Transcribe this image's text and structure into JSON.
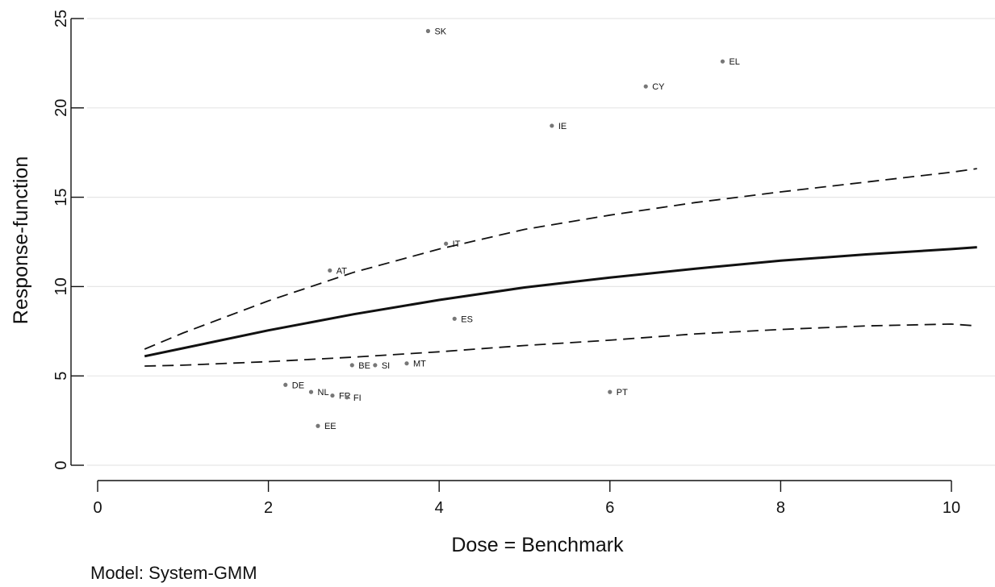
{
  "chart_data": {
    "type": "scatter",
    "title": "",
    "xlabel": "Dose = Benchmark",
    "ylabel": "Response-function",
    "xlim": [
      0,
      10.5
    ],
    "ylim": [
      0,
      25
    ],
    "x_ticks": [
      0,
      2,
      4,
      6,
      8,
      10
    ],
    "y_ticks": [
      0,
      5,
      10,
      15,
      20,
      25
    ],
    "grid": "horizontal",
    "note": "Model: System-GMM",
    "points": [
      {
        "label": "SK",
        "x": 3.87,
        "y": 24.3
      },
      {
        "label": "EL",
        "x": 7.32,
        "y": 22.6
      },
      {
        "label": "CY",
        "x": 6.42,
        "y": 21.2
      },
      {
        "label": "IE",
        "x": 5.32,
        "y": 19.0
      },
      {
        "label": "IT",
        "x": 4.08,
        "y": 12.4
      },
      {
        "label": "AT",
        "x": 2.72,
        "y": 10.9
      },
      {
        "label": "ES",
        "x": 4.18,
        "y": 8.2
      },
      {
        "label": "BE",
        "x": 2.98,
        "y": 5.6
      },
      {
        "label": "SI",
        "x": 3.25,
        "y": 5.6
      },
      {
        "label": "MT",
        "x": 3.62,
        "y": 5.7
      },
      {
        "label": "DE",
        "x": 2.2,
        "y": 4.5
      },
      {
        "label": "NL",
        "x": 2.5,
        "y": 4.1
      },
      {
        "label": "FR",
        "x": 2.75,
        "y": 3.9
      },
      {
        "label": "FI",
        "x": 2.92,
        "y": 3.8
      },
      {
        "label": "PT",
        "x": 6.0,
        "y": 4.1
      },
      {
        "label": "EE",
        "x": 2.58,
        "y": 2.2
      }
    ],
    "series": [
      {
        "style": "solid",
        "x": [
          0.55,
          1,
          2,
          3,
          4,
          5,
          6,
          7,
          8,
          9,
          10,
          10.3
        ],
        "y": [
          6.1,
          6.55,
          7.55,
          8.45,
          9.25,
          9.95,
          10.5,
          11.0,
          11.45,
          11.8,
          12.1,
          12.2
        ]
      },
      {
        "style": "dashed",
        "x": [
          0.55,
          1,
          2,
          3,
          4,
          5,
          6,
          7,
          8,
          9,
          10,
          10.3
        ],
        "y": [
          6.5,
          7.4,
          9.2,
          10.8,
          12.1,
          13.2,
          14.0,
          14.7,
          15.3,
          15.85,
          16.4,
          16.6
        ]
      },
      {
        "style": "dashed",
        "x": [
          0.55,
          1,
          2,
          3,
          4,
          5,
          6,
          7,
          8,
          9,
          10,
          10.3
        ],
        "y": [
          5.55,
          5.6,
          5.8,
          6.05,
          6.35,
          6.7,
          7.0,
          7.35,
          7.6,
          7.8,
          7.9,
          7.8
        ]
      }
    ]
  }
}
